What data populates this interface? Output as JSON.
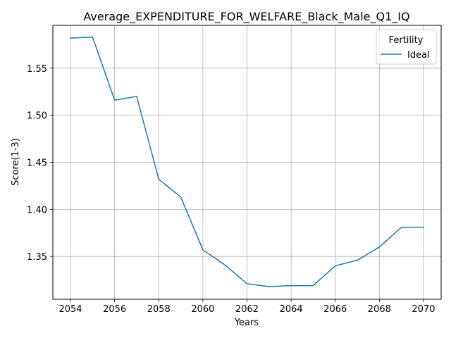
{
  "chart_data": {
    "type": "line",
    "title": "Average_EXPENDITURE_FOR_WELFARE_Black_Male_Q1_IQ",
    "xlabel": "Years",
    "ylabel": "Score(1-3)",
    "xlim": [
      2053.2,
      2070.8
    ],
    "ylim": [
      1.3045,
      1.5955
    ],
    "x_ticks": [
      2054,
      2056,
      2058,
      2060,
      2062,
      2064,
      2066,
      2068,
      2070
    ],
    "y_ticks": [
      1.35,
      1.4,
      1.45,
      1.5,
      1.55
    ],
    "x_tick_labels": [
      "2054",
      "2056",
      "2058",
      "2060",
      "2062",
      "2064",
      "2066",
      "2068",
      "2070"
    ],
    "y_tick_labels": [
      "1.35",
      "1.40",
      "1.45",
      "1.50",
      "1.55"
    ],
    "grid": true,
    "legend": {
      "title": "Fertility",
      "placement": "top-right"
    },
    "series": [
      {
        "name": "Ideal",
        "color": "#1f77b4",
        "x": [
          2054,
          2055,
          2056,
          2057,
          2058,
          2059,
          2060,
          2061,
          2062,
          2063,
          2064,
          2065,
          2066,
          2067,
          2068,
          2069,
          2070
        ],
        "y": [
          1.582,
          1.583,
          1.516,
          1.52,
          1.432,
          1.413,
          1.357,
          1.341,
          1.321,
          1.318,
          1.319,
          1.319,
          1.34,
          1.346,
          1.36,
          1.381,
          1.381
        ]
      }
    ]
  }
}
